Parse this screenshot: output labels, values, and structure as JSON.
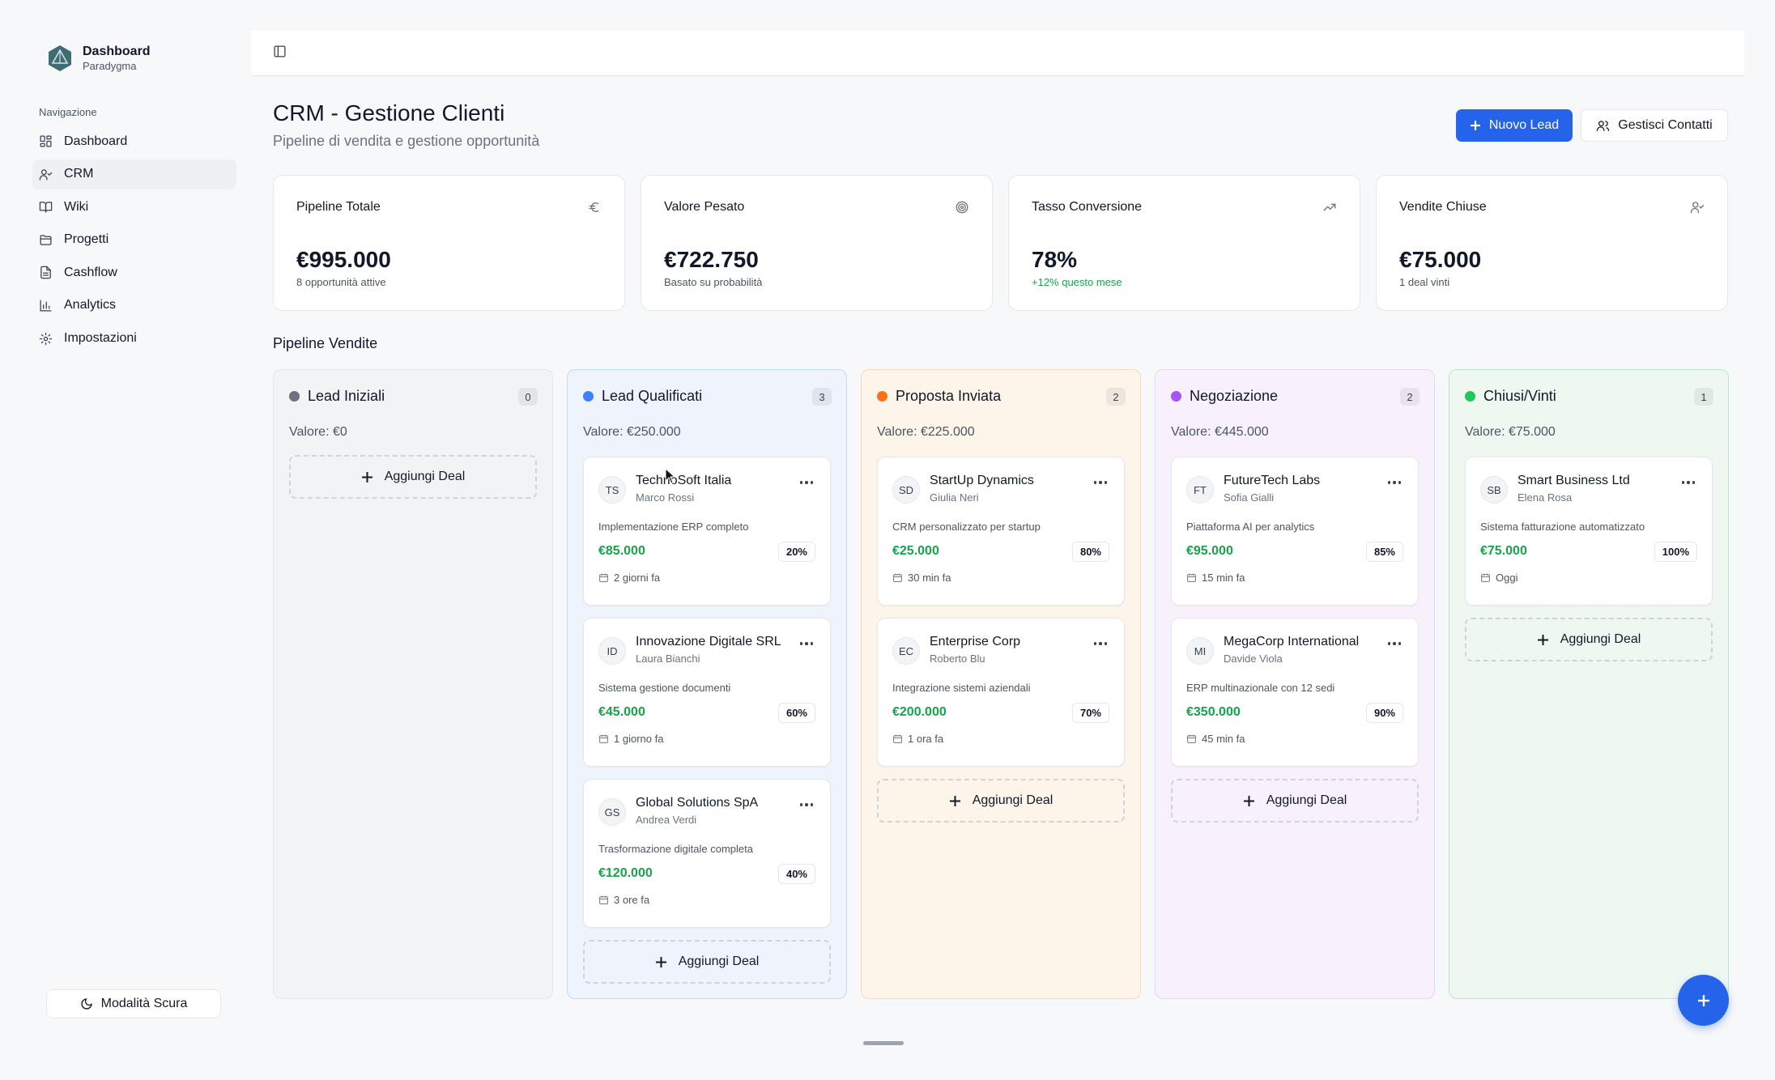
{
  "brand": {
    "title": "Dashboard",
    "subtitle": "Paradygma"
  },
  "sidebar": {
    "heading": "Navigazione",
    "items": [
      {
        "label": "Dashboard",
        "icon": "dashboard-icon"
      },
      {
        "label": "CRM",
        "icon": "user-check-icon",
        "active": true
      },
      {
        "label": "Wiki",
        "icon": "book-icon"
      },
      {
        "label": "Progetti",
        "icon": "folder-icon"
      },
      {
        "label": "Cashflow",
        "icon": "file-icon"
      },
      {
        "label": "Analytics",
        "icon": "bar-chart-icon"
      },
      {
        "label": "Impostazioni",
        "icon": "gear-icon"
      }
    ],
    "dark_mode_label": "Modalità Scura"
  },
  "header": {
    "title": "CRM - Gestione Clienti",
    "subtitle": "Pipeline di vendita e gestione opportunità",
    "new_lead_label": "Nuovo Lead",
    "manage_contacts_label": "Gestisci Contatti"
  },
  "stats": [
    {
      "title": "Pipeline Totale",
      "value": "€995.000",
      "note": "8 opportunità attive",
      "icon": "euro-icon"
    },
    {
      "title": "Valore Pesato",
      "value": "€722.750",
      "note": "Basato su probabilità",
      "icon": "target-icon"
    },
    {
      "title": "Tasso Conversione",
      "value": "78%",
      "note": "+12% questo mese",
      "icon": "trending-up-icon"
    },
    {
      "title": "Vendite Chiuse",
      "value": "€75.000",
      "note": "1 deal vinti",
      "icon": "user-check-icon"
    }
  ],
  "pipeline": {
    "title": "Pipeline Vendite",
    "add_deal_label": "Aggiungi Deal",
    "columns": [
      {
        "title": "Lead Iniziali",
        "count": "0",
        "value": "Valore: €0",
        "color": "#6b7280",
        "bg": "#f2f3f5",
        "border": "#e5e7eb",
        "cards": []
      },
      {
        "title": "Lead Qualificati",
        "count": "3",
        "value": "Valore: €250.000",
        "color": "#3b82f6",
        "bg": "#eff4fc",
        "border": "#bfdbfe",
        "cards": [
          {
            "initials": "TS",
            "company": "TechnoSoft Italia",
            "contact": "Marco Rossi",
            "desc": "Implementazione ERP completo",
            "amount": "€85.000",
            "prob": "20%",
            "time": "2 giorni fa"
          },
          {
            "initials": "ID",
            "company": "Innovazione Digitale SRL",
            "contact": "Laura Bianchi",
            "desc": "Sistema gestione documenti",
            "amount": "€45.000",
            "prob": "60%",
            "time": "1 giorno fa"
          },
          {
            "initials": "GS",
            "company": "Global Solutions SpA",
            "contact": "Andrea Verdi",
            "desc": "Trasformazione digitale completa",
            "amount": "€120.000",
            "prob": "40%",
            "time": "3 ore fa"
          }
        ]
      },
      {
        "title": "Proposta Inviata",
        "count": "2",
        "value": "Valore: €225.000",
        "color": "#f97316",
        "bg": "#fdf4ea",
        "border": "#fbd9b4",
        "cards": [
          {
            "initials": "SD",
            "company": "StartUp Dynamics",
            "contact": "Giulia Neri",
            "desc": "CRM personalizzato per startup",
            "amount": "€25.000",
            "prob": "80%",
            "time": "30 min fa"
          },
          {
            "initials": "EC",
            "company": "Enterprise Corp",
            "contact": "Roberto Blu",
            "desc": "Integrazione sistemi aziendali",
            "amount": "€200.000",
            "prob": "70%",
            "time": "1 ora fa"
          }
        ]
      },
      {
        "title": "Negoziazione",
        "count": "2",
        "value": "Valore: €445.000",
        "color": "#a855f7",
        "bg": "#f8f1fb",
        "border": "#e9d5f5",
        "cards": [
          {
            "initials": "FT",
            "company": "FutureTech Labs",
            "contact": "Sofia Gialli",
            "desc": "Piattaforma AI per analytics",
            "amount": "€95.000",
            "prob": "85%",
            "time": "15 min fa"
          },
          {
            "initials": "MI",
            "company": "MegaCorp International",
            "contact": "Davide Viola",
            "desc": "ERP multinazionale con 12 sedi",
            "amount": "€350.000",
            "prob": "90%",
            "time": "45 min fa"
          }
        ]
      },
      {
        "title": "Chiusi/Vinti",
        "count": "1",
        "value": "Valore: €75.000",
        "color": "#22c55e",
        "bg": "#eef8f0",
        "border": "#bbe7c6",
        "cards": [
          {
            "initials": "SB",
            "company": "Smart Business Ltd",
            "contact": "Elena Rosa",
            "desc": "Sistema fatturazione automatizzato",
            "amount": "€75.000",
            "prob": "100%",
            "time": "Oggi"
          }
        ]
      }
    ]
  }
}
